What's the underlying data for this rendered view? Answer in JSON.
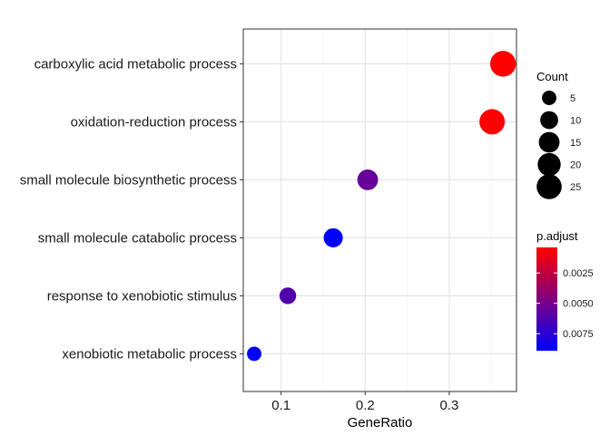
{
  "chart_data": {
    "type": "scatter",
    "xlabel": "GeneRatio",
    "ylabel": "",
    "xlim": [
      0.055,
      0.38
    ],
    "xticks": [
      0.1,
      0.2,
      0.3
    ],
    "xtick_labels": [
      "0.1",
      "0.2",
      "0.3"
    ],
    "grid": true,
    "legend_position": "right",
    "points": [
      {
        "term": "carboxylic acid metabolic process",
        "gene_ratio": 0.364,
        "count": 27,
        "p_adjust": 0.0004
      },
      {
        "term": "oxidation-reduction process",
        "gene_ratio": 0.351,
        "count": 26,
        "p_adjust": 0.0004
      },
      {
        "term": "small molecule biosynthetic process",
        "gene_ratio": 0.203,
        "count": 15,
        "p_adjust": 0.0055
      },
      {
        "term": "small molecule catabolic process",
        "gene_ratio": 0.162,
        "count": 12,
        "p_adjust": 0.0089
      },
      {
        "term": "response to xenobiotic stimulus",
        "gene_ratio": 0.108,
        "count": 8,
        "p_adjust": 0.0062
      },
      {
        "term": "xenobiotic metabolic process",
        "gene_ratio": 0.068,
        "count": 5,
        "p_adjust": 0.0089
      }
    ],
    "size_legend": {
      "title": "Count",
      "values": [
        5,
        10,
        15,
        20,
        25
      ],
      "labels": [
        "5",
        "10",
        "15",
        "20",
        "25"
      ]
    },
    "color_legend": {
      "title": "p.adjust",
      "low_color": "#0000ff",
      "high_color": "#ff0000",
      "range": [
        0.0004,
        0.0089
      ],
      "ticks": [
        0.0025,
        0.005,
        0.0075
      ],
      "tick_labels": [
        "0.0025",
        "0.0050",
        "0.0075"
      ]
    }
  }
}
